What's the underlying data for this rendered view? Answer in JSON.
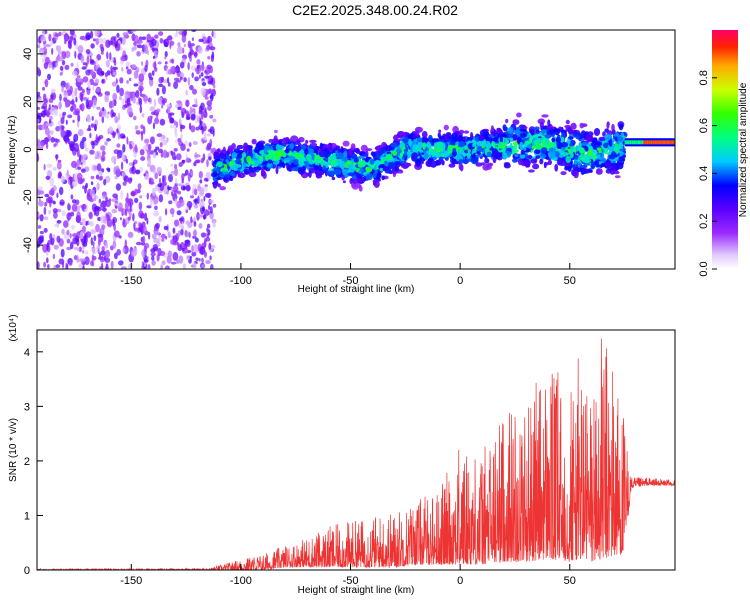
{
  "title": "C2E2.2025.348.00.24.R02",
  "chart_data": [
    {
      "type": "heatmap",
      "xlabel": "Height of straight line (km)",
      "ylabel": "Frequency (Hz)",
      "xlim": [
        -193,
        98
      ],
      "ylim": [
        -50,
        50
      ],
      "xticks": [
        "-150",
        "-100",
        "-50",
        "0",
        "50"
      ],
      "yticks": [
        "-40",
        "-20",
        "0",
        "20",
        "40"
      ],
      "colorbar": {
        "label": "Normalized spectral amplitude",
        "range": [
          0,
          1
        ],
        "ticks": [
          "0.0",
          "0.2",
          "0.4",
          "0.6",
          "0.8"
        ]
      },
      "features": [
        {
          "x_range": [
            -193,
            -112
          ],
          "description": "low-amplitude speckle across all frequencies"
        },
        {
          "x_range": [
            -112,
            75
          ],
          "center_hz": [
            [
              -112,
              -8
            ],
            [
              -85,
              -2
            ],
            [
              -60,
              -5
            ],
            [
              -40,
              -8
            ],
            [
              -25,
              0
            ],
            [
              0,
              0
            ],
            [
              20,
              2
            ],
            [
              40,
              2
            ],
            [
              60,
              -2
            ],
            [
              70,
              0
            ],
            [
              75,
              2
            ]
          ],
          "width_hz": 10
        },
        {
          "x_range": [
            75,
            98
          ],
          "center_hz": 3,
          "amplitude": 0.9
        }
      ],
      "grid": false
    },
    {
      "type": "line",
      "xlabel": "Height of straight line (km)",
      "ylabel": "SNR (10 * v/v)",
      "scale_label": "(x10⁴)",
      "xlim": [
        -193,
        98
      ],
      "ylim": [
        0,
        4.4
      ],
      "xticks": [
        "-150",
        "-100",
        "-50",
        "0",
        "50"
      ],
      "yticks": [
        "0",
        "1",
        "2",
        "3",
        "4"
      ],
      "color": "#ee3333",
      "envelope": {
        "x": [
          -193,
          -115,
          -100,
          -90,
          -80,
          -70,
          -60,
          -50,
          -40,
          -30,
          -20,
          -10,
          0,
          10,
          20,
          30,
          40,
          50,
          55,
          60,
          65,
          70,
          75,
          78,
          85,
          98
        ],
        "max": [
          0.02,
          0.03,
          0.2,
          0.3,
          0.45,
          0.6,
          0.8,
          0.9,
          1.0,
          1.1,
          1.3,
          1.5,
          2.3,
          2.2,
          3.0,
          3.2,
          3.8,
          3.5,
          4.0,
          3.4,
          4.4,
          4.0,
          2.8,
          1.7,
          1.7,
          1.65
        ],
        "min": [
          0.0,
          0.0,
          0.0,
          0.0,
          0.05,
          0.05,
          0.05,
          0.05,
          0.05,
          0.05,
          0.1,
          0.1,
          0.1,
          0.1,
          0.15,
          0.15,
          0.2,
          0.15,
          0.2,
          0.15,
          0.2,
          0.25,
          0.3,
          1.5,
          1.55,
          1.55
        ]
      },
      "grid": false
    }
  ]
}
